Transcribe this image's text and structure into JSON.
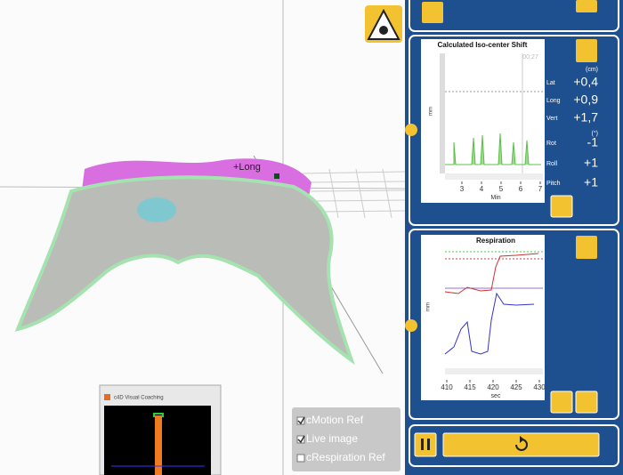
{
  "viewport": {
    "annotation": "+Long"
  },
  "iso_shift": {
    "title": "Calculated Iso-center Shift",
    "timer": "00:27",
    "y_label": "mm",
    "x_label": "Min",
    "x_ticks": [
      3,
      4,
      5,
      6,
      7
    ],
    "translation_unit": "(cm)",
    "translations": [
      {
        "label": "Lat",
        "value": "+0,4"
      },
      {
        "label": "Long",
        "value": "+0,9"
      },
      {
        "label": "Vert",
        "value": "+1,7"
      }
    ],
    "rotation_unit": "(°)",
    "rotations": [
      {
        "label": "Rot",
        "value": "-1"
      },
      {
        "label": "Roll",
        "value": "+1"
      },
      {
        "label": "Pitch",
        "value": "+1"
      }
    ]
  },
  "respiration": {
    "title": "Respiration",
    "y_label": "mm",
    "x_label": "sec",
    "x_ticks": [
      410,
      415,
      420,
      425,
      430
    ]
  },
  "coaching": {
    "title": "c4D Visual Coaching"
  },
  "options": [
    {
      "label": "cMotion Ref",
      "checked": true
    },
    {
      "label": "Live image",
      "checked": true
    },
    {
      "label": "cRespiration Ref",
      "checked": false
    }
  ]
}
